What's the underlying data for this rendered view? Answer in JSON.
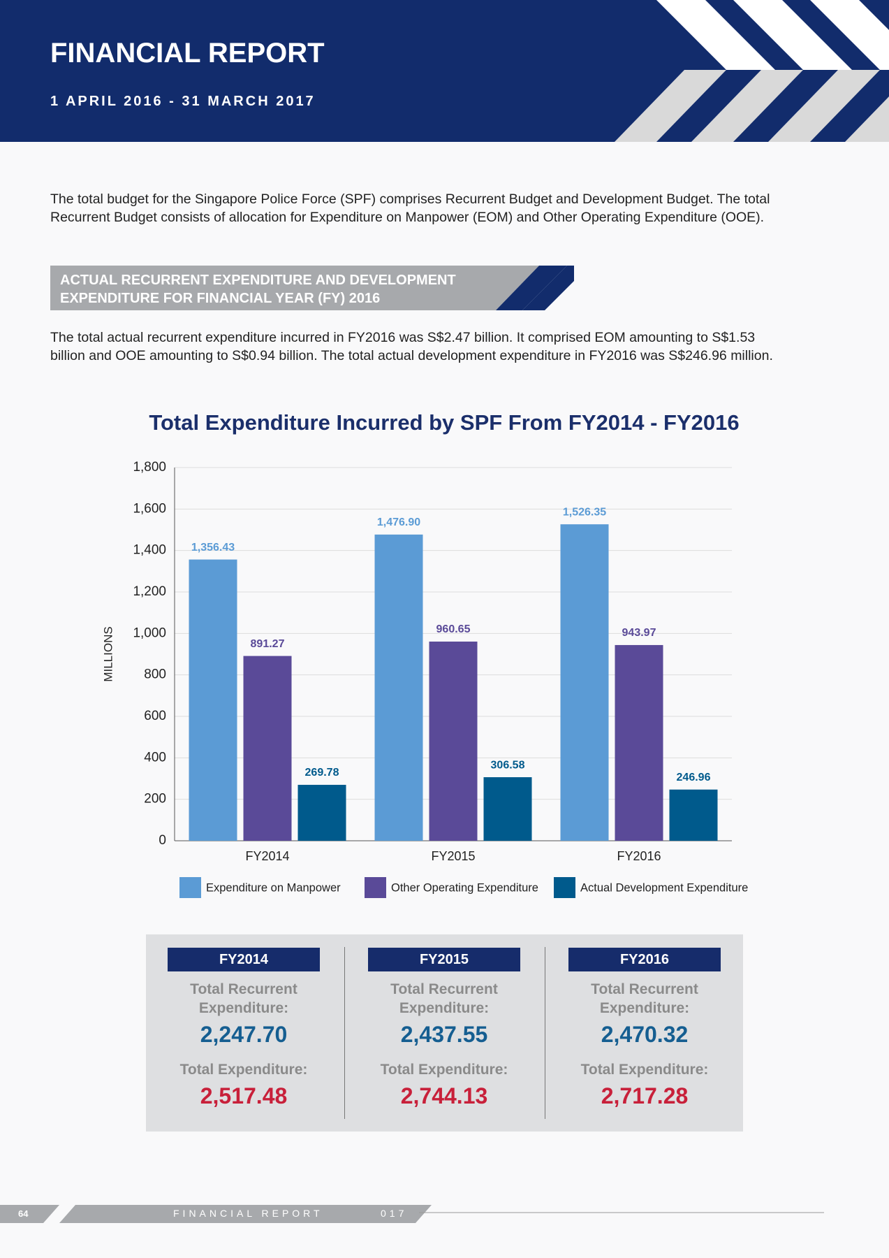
{
  "header": {
    "title": "FINANCIAL REPORT",
    "period": "1 APRIL 2016 - 31 MARCH 2017"
  },
  "intro": "The total budget for the Singapore Police Force (SPF) comprises Recurrent Budget and Development Budget. The total Recurrent Budget consists of allocation for Expenditure on Manpower (EOM) and Other Operating Expenditure (OOE).",
  "section": {
    "heading": "ACTUAL RECURRENT EXPENDITURE AND DEVELOPMENT EXPENDITURE FOR FINANCIAL YEAR (FY) 2016",
    "text": "The total actual recurrent expenditure incurred in FY2016 was S$2.47 billion. It comprised EOM amounting to S$1.53 billion and OOE amounting to S$0.94 billion. The total actual development expenditure in FY2016 was S$246.96 million."
  },
  "chart_data": {
    "type": "bar",
    "title": "Total Expenditure Incurred by SPF From FY2014 - FY2016",
    "y_label": "MILLIONS",
    "categories": [
      "FY2014",
      "FY2015",
      "FY2016"
    ],
    "series": [
      {
        "name": "Expenditure on Manpower",
        "color": "#5b9bd5",
        "values": [
          1356.43,
          1476.9,
          1526.35
        ],
        "value_labels": [
          "1,356.43",
          "1,476.90",
          "1,526.35"
        ]
      },
      {
        "name": "Other Operating Expenditure",
        "color": "#5a4a98",
        "values": [
          891.27,
          960.65,
          943.97
        ],
        "value_labels": [
          "891.27",
          "960.65",
          "943.97"
        ]
      },
      {
        "name": "Actual Development Expenditure",
        "color": "#005a8c",
        "values": [
          269.78,
          306.58,
          246.96
        ],
        "value_labels": [
          "269.78",
          "306.58",
          "246.96"
        ]
      }
    ],
    "ylim": [
      0,
      1800
    ],
    "yticks": [
      0,
      200,
      400,
      600,
      800,
      {
        "value": 1000,
        "label": "1,000"
      },
      {
        "value": 1200,
        "label": "1,200"
      },
      {
        "value": 1400,
        "label": "1,400"
      },
      {
        "value": 1600,
        "label": "1,600"
      },
      {
        "value": 1800,
        "label": "1,800"
      }
    ],
    "grid": true
  },
  "summary": [
    {
      "year": "FY2014",
      "recurrent_label": "Total Recurrent Expenditure:",
      "recurrent": "2,247.70",
      "total_label": "Total Expenditure:",
      "total": "2,517.48"
    },
    {
      "year": "FY2015",
      "recurrent_label": "Total Recurrent Expenditure:",
      "recurrent": "2,437.55",
      "total_label": "Total Expenditure:",
      "total": "2,744.13"
    },
    {
      "year": "FY2016",
      "recurrent_label": "Total Recurrent Expenditure:",
      "recurrent": "2,470.32",
      "total_label": "Total Expenditure:",
      "total": "2,717.28"
    }
  ],
  "footer": {
    "page": "64",
    "label": "FINANCIAL REPORT",
    "year_fragment": "017"
  }
}
